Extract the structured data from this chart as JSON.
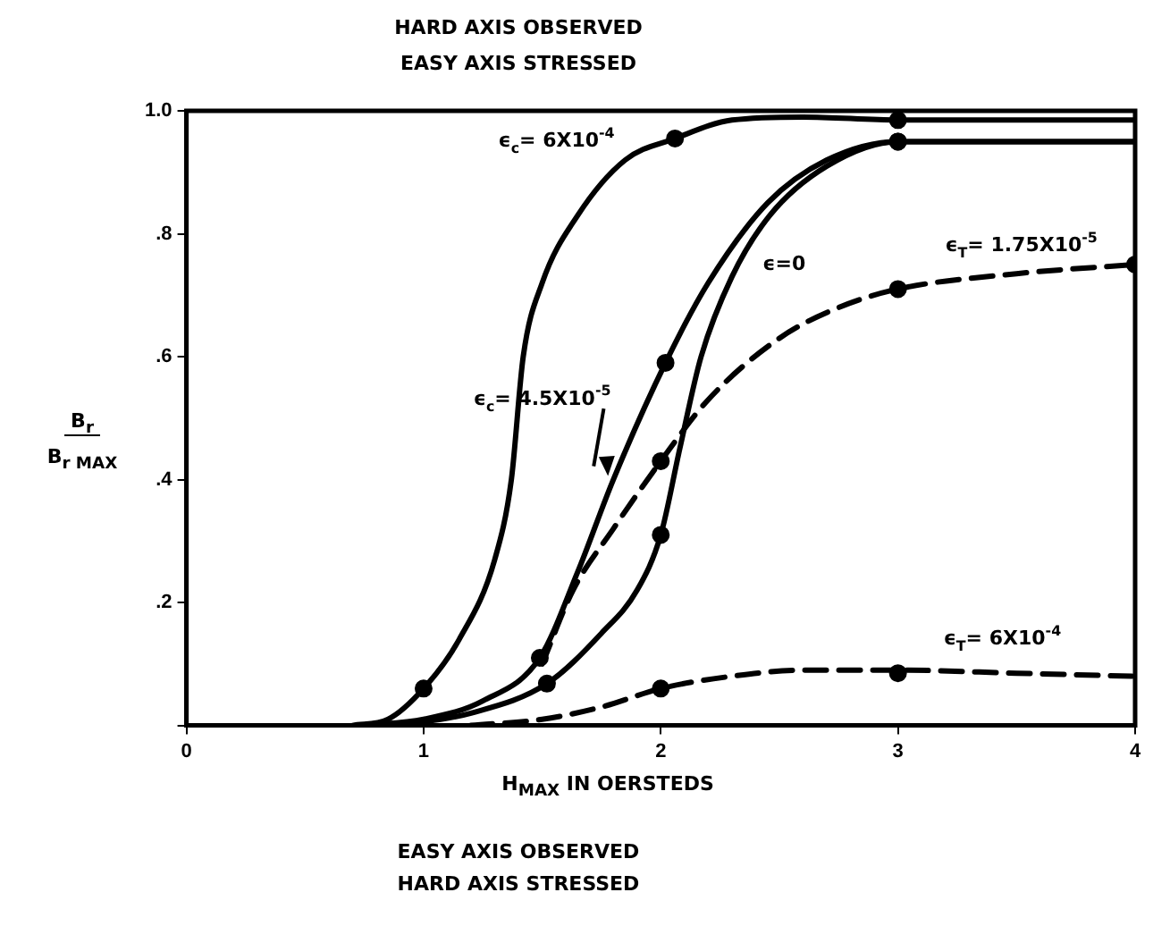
{
  "chart_data": {
    "type": "line",
    "title": "HARD AXIS OBSERVED\nEASY AXIS STRESSED",
    "xlabel": "H$_{MAX}$  IN OERSTEDS",
    "ylabel": "B$_{r}$\nB$_{r MAX}$",
    "xlim": [
      0,
      4
    ],
    "xticks": [
      0,
      1,
      2,
      3,
      4
    ],
    "ylim": [
      0,
      1
    ],
    "yticks": [
      {
        "value": 0,
        "label": null
      },
      {
        "value": 0.2,
        "label": ".2"
      },
      {
        "value": 0.4,
        "label": ".4"
      },
      {
        "value": 0.6,
        "label": ".6"
      },
      {
        "value": 0.8,
        "label": ".8"
      },
      {
        "value": 1,
        "label": "1.0"
      }
    ],
    "grid": false,
    "series": [
      {
        "name": "ϵ$_{c}$= 6X10$^{-4}$",
        "color": "#000000",
        "line_style": "solid",
        "marker": "none",
        "x": [
          0.7,
          0.85,
          1.0,
          1.15,
          1.3,
          1.37,
          1.42,
          1.5,
          1.65,
          1.85,
          2.06,
          2.3,
          2.6,
          3,
          4
        ],
        "values": [
          0,
          0.01,
          0.06,
          0.14,
          0.27,
          0.4,
          0.6,
          0.72,
          0.83,
          0.92,
          0.955,
          0.985,
          0.99,
          0.985,
          0.985
        ]
      },
      {
        "type": "scatter",
        "color": "#000000",
        "marker": "circle",
        "x": [
          1.0,
          2.06,
          3
        ],
        "values": [
          0.06,
          0.955,
          0.985
        ]
      },
      {
        "name": "ϵ$_{c}$= 4.5X10$^{-5}$",
        "color": "#000000",
        "line_style": "solid",
        "marker": "none",
        "x": [
          0.75,
          1.0,
          1.25,
          1.49,
          1.65,
          1.8,
          2.02,
          2.2,
          2.45,
          2.7,
          3,
          4
        ],
        "values": [
          0,
          0.01,
          0.04,
          0.11,
          0.25,
          0.4,
          0.59,
          0.72,
          0.85,
          0.92,
          0.95,
          0.95
        ]
      },
      {
        "type": "scatter",
        "color": "#000000",
        "marker": "circle",
        "x": [
          1.49,
          2.02,
          3
        ],
        "values": [
          0.11,
          0.59,
          0.95
        ]
      },
      {
        "name": "ϵ=0",
        "color": "#000000",
        "line_style": "solid",
        "marker": "none",
        "x": [
          0.9,
          1.2,
          1.52,
          1.75,
          1.9,
          2.0,
          2.08,
          2.17,
          2.3,
          2.46,
          2.7,
          3,
          4
        ],
        "values": [
          0,
          0.02,
          0.068,
          0.15,
          0.22,
          0.31,
          0.45,
          0.6,
          0.73,
          0.83,
          0.91,
          0.95,
          0.95
        ]
      },
      {
        "type": "scatter",
        "color": "#000000",
        "marker": "circle",
        "x": [
          1.52,
          2.0,
          3
        ],
        "values": [
          0.068,
          0.31,
          0.95
        ]
      },
      {
        "name": "ϵ$_{T}$= 1.75X10$^{-5}$",
        "color": "#000000",
        "line_style": "dashed",
        "marker": "none",
        "x": [
          1.5,
          1.63,
          1.8,
          2.0,
          2.2,
          2.5,
          2.75,
          3,
          3.5,
          4
        ],
        "values": [
          0.1,
          0.22,
          0.32,
          0.43,
          0.53,
          0.63,
          0.68,
          0.71,
          0.735,
          0.75
        ]
      },
      {
        "type": "scatter",
        "color": "#000000",
        "marker": "circle",
        "x": [
          2.0,
          3,
          4
        ],
        "values": [
          0.43,
          0.71,
          0.75
        ]
      },
      {
        "name": "ϵ$_{T}$= 6X10$^{-4}$",
        "color": "#000000",
        "line_style": "dashed",
        "marker": "none",
        "x": [
          1.2,
          1.5,
          1.75,
          2.0,
          2.3,
          2.6,
          3,
          3.5,
          4
        ],
        "values": [
          0,
          0.01,
          0.03,
          0.06,
          0.08,
          0.09,
          0.09,
          0.085,
          0.08
        ]
      },
      {
        "type": "scatter",
        "color": "#000000",
        "marker": "circle",
        "x": [
          2.0,
          3
        ],
        "values": [
          0.06,
          0.085
        ]
      }
    ],
    "annotations": [
      "EASY AXIS OBSERVED\nHARD AXIS STRESSED"
    ]
  }
}
